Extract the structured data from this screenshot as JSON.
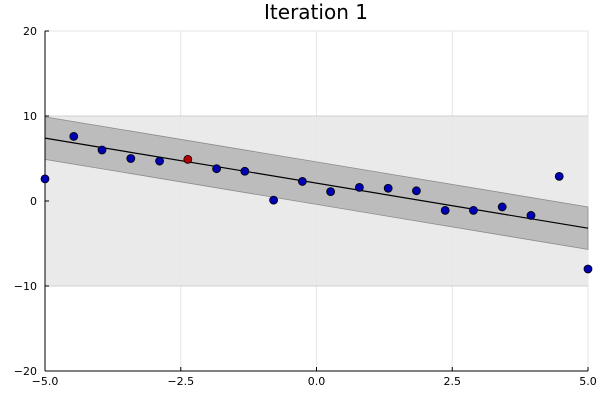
{
  "chart_data": {
    "type": "scatter",
    "title": "Iteration 1",
    "xlabel": "",
    "ylabel": "",
    "xlim": [
      -5,
      5
    ],
    "ylim": [
      -20,
      20
    ],
    "xticks": [
      -5,
      -2.5,
      0,
      2.5,
      5
    ],
    "xtick_labels": [
      "−5.0",
      "−2.5",
      "0.0",
      "2.5",
      "5.0"
    ],
    "yticks": [
      -20,
      -10,
      0,
      10,
      20
    ],
    "ytick_labels": [
      "−20",
      "−10",
      "0",
      "10",
      "20"
    ],
    "grid": true,
    "legend": "none",
    "outer_band": {
      "y_low": -10,
      "y_high": 10,
      "color": "#e8e8e8"
    },
    "fit_line": {
      "x": [
        -5,
        5
      ],
      "y": [
        7.4,
        -3.2
      ],
      "color": "#000000"
    },
    "fit_band": {
      "x": [
        -5,
        5
      ],
      "y_low": [
        4.9,
        -5.7
      ],
      "y_high": [
        9.9,
        -0.7
      ],
      "color": "#bcbcbc"
    },
    "points": {
      "x": [
        -5.0,
        -4.47,
        -3.95,
        -3.42,
        -2.89,
        -1.84,
        -1.32,
        -0.79,
        -0.26,
        0.26,
        0.79,
        1.32,
        1.84,
        2.37,
        2.89,
        3.42,
        3.95,
        4.47,
        5.0
      ],
      "y": [
        2.6,
        7.6,
        6.0,
        5.0,
        4.7,
        3.8,
        3.5,
        0.1,
        2.3,
        1.1,
        1.6,
        1.5,
        1.2,
        -1.1,
        -1.1,
        -0.7,
        -1.7,
        2.9,
        -8.0
      ],
      "color": "#0000b3"
    },
    "highlight": {
      "x": -2.37,
      "y": 4.9,
      "color": "#b30000"
    }
  }
}
